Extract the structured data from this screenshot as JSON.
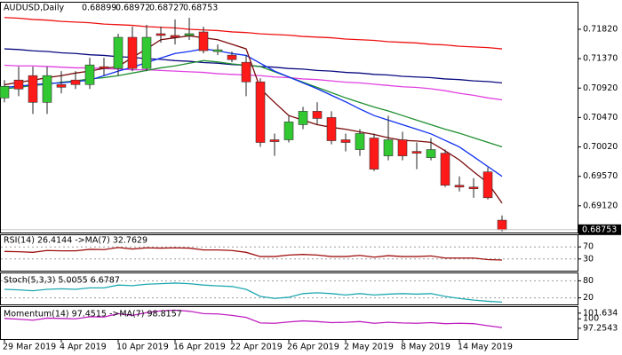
{
  "chart_data": [
    {
      "type": "candlestick",
      "title": "AUDUSD,Daily",
      "categories": [
        "29 Mar 2019",
        null,
        null,
        null,
        "4 Apr 2019",
        null,
        null,
        null,
        "10 Apr 2019",
        null,
        null,
        null,
        "16 Apr 2019",
        null,
        null,
        null,
        "22 Apr 2019",
        null,
        null,
        null,
        "26 Apr 2019",
        null,
        null,
        null,
        "2 May 2019",
        null,
        null,
        null,
        "8 May 2019",
        null,
        null,
        null,
        "14 May 2019",
        null,
        null,
        null
      ],
      "open": [
        0.7077,
        0.71043,
        0.71111,
        0.70702,
        0.70974,
        0.71043,
        0.70974,
        0.71247,
        0.7122,
        0.71697,
        0.7122,
        0.71752,
        0.71725,
        0.71725,
        0.71779,
        0.71479,
        0.71424,
        0.71315,
        0.71015,
        0.70129,
        0.70129,
        0.70361,
        0.70565,
        0.7047,
        0.70129,
        0.69979,
        0.70156,
        0.69883,
        0.70129,
        0.69951,
        0.69856,
        0.69924,
        0.69433,
        0.69406,
        0.69638,
        0.68899
      ],
      "high": [
        0.71043,
        0.71247,
        0.71247,
        0.71247,
        0.71179,
        0.71179,
        0.71384,
        0.71384,
        0.71752,
        0.71861,
        0.71888,
        0.71861,
        0.7197,
        0.71997,
        0.71861,
        0.71588,
        0.71479,
        0.71424,
        0.7107,
        0.70224,
        0.70497,
        0.70633,
        0.70702,
        0.70565,
        0.70224,
        0.70292,
        0.70224,
        0.70497,
        0.70251,
        0.70088,
        0.70156,
        0.69979,
        0.69569,
        0.69542,
        0.69706,
        0.68972
      ],
      "low": [
        0.70702,
        0.70797,
        0.70524,
        0.70524,
        0.70838,
        0.70906,
        0.70906,
        0.71111,
        0.71111,
        0.71179,
        0.71179,
        0.71615,
        0.71588,
        0.71656,
        0.71452,
        0.71424,
        0.71315,
        0.70797,
        0.7002,
        0.69883,
        0.70088,
        0.70292,
        0.70361,
        0.7006,
        0.69951,
        0.69883,
        0.69651,
        0.69815,
        0.69815,
        0.69679,
        0.69815,
        0.69406,
        0.69338,
        0.69242,
        0.69215,
        0.68727
      ],
      "close": [
        0.70947,
        0.70906,
        0.70702,
        0.71111,
        0.70933,
        0.70974,
        0.71274,
        0.7122,
        0.71697,
        0.7122,
        0.71697,
        0.71725,
        0.71697,
        0.71752,
        0.71493,
        0.71506,
        0.71356,
        0.71015,
        0.70088,
        0.70101,
        0.70402,
        0.70565,
        0.70456,
        0.70115,
        0.70088,
        0.70224,
        0.69679,
        0.70129,
        0.69883,
        0.69924,
        0.69979,
        0.69433,
        0.69406,
        0.69379,
        0.69242,
        0.68753
      ],
      "up_color": "#32c832",
      "down_color": "#ff1a1a",
      "ylim": [
        0.6871,
        0.722
      ],
      "yticks": [
        {
          "value": 0.7182,
          "label": "0.71820"
        },
        {
          "value": 0.7137,
          "label": "0.71370"
        },
        {
          "value": 0.7092,
          "label": "0.70920"
        },
        {
          "value": 0.7047,
          "label": "0.70470"
        },
        {
          "value": 0.7002,
          "label": "0.70020"
        },
        {
          "value": 0.6957,
          "label": "0.69570"
        },
        {
          "value": 0.6912,
          "label": "0.69120"
        }
      ],
      "series": [
        {
          "color": "#ee1111",
          "values": [
            0.72,
            0.7199,
            0.7197,
            0.7196,
            0.7194,
            0.7193,
            0.7192,
            0.719,
            0.7189,
            0.7188,
            0.7186,
            0.7185,
            0.7184,
            0.7182,
            0.7181,
            0.718,
            0.7178,
            0.7177,
            0.7175,
            0.7174,
            0.7173,
            0.7171,
            0.717,
            0.7169,
            0.7167,
            0.7166,
            0.7165,
            0.7163,
            0.7162,
            0.7161,
            0.7159,
            0.7158,
            0.7156,
            0.7155,
            0.7154,
            0.7152
          ]
        },
        {
          "color": "#0a0a80",
          "values": [
            0.7152,
            0.7151,
            0.7149,
            0.7148,
            0.7146,
            0.7145,
            0.7143,
            0.7142,
            0.714,
            0.7139,
            0.7137,
            0.7136,
            0.7134,
            0.7133,
            0.7131,
            0.713,
            0.7128,
            0.7127,
            0.7125,
            0.7124,
            0.7122,
            0.7121,
            0.7119,
            0.7118,
            0.7116,
            0.7115,
            0.7113,
            0.7112,
            0.711,
            0.7109,
            0.7108,
            0.7106,
            0.7105,
            0.7103,
            0.7102,
            0.71
          ]
        },
        {
          "color": "#e040e0",
          "values": [
            0.7127,
            0.7126,
            0.7126,
            0.7125,
            0.7124,
            0.7123,
            0.7123,
            0.7122,
            0.7121,
            0.712,
            0.712,
            0.7119,
            0.7118,
            0.7117,
            0.7116,
            0.7114,
            0.7113,
            0.7112,
            0.7111,
            0.7109,
            0.7108,
            0.7106,
            0.7105,
            0.7103,
            0.7101,
            0.71,
            0.7098,
            0.7096,
            0.7094,
            0.7093,
            0.7091,
            0.7088,
            0.7084,
            0.7081,
            0.7077,
            0.7074
          ]
        },
        {
          "color": "#1f8f2f",
          "values": [
            0.7091,
            0.7093,
            0.7096,
            0.7098,
            0.7101,
            0.7103,
            0.7106,
            0.7108,
            0.7111,
            0.7115,
            0.7119,
            0.7123,
            0.7126,
            0.713,
            0.7134,
            0.7132,
            0.7129,
            0.7127,
            0.7125,
            0.7117,
            0.7109,
            0.7101,
            0.7093,
            0.7085,
            0.7077,
            0.707,
            0.7063,
            0.7057,
            0.705,
            0.7043,
            0.7036,
            0.7029,
            0.7023,
            0.7016,
            0.7009,
            0.7002
          ]
        },
        {
          "color": "#1030f0",
          "values": [
            0.7093,
            0.7095,
            0.7097,
            0.7099,
            0.71,
            0.7102,
            0.7104,
            0.7111,
            0.7118,
            0.7124,
            0.7131,
            0.7138,
            0.7145,
            0.7148,
            0.7152,
            0.7149,
            0.7145,
            0.7142,
            0.713,
            0.7118,
            0.7109,
            0.71,
            0.7091,
            0.7081,
            0.7071,
            0.706,
            0.705,
            0.7043,
            0.7036,
            0.7029,
            0.7022,
            0.7012,
            0.7002,
            0.6987,
            0.6972,
            0.6957
          ]
        },
        {
          "color": "#7a0a0a",
          "values": [
            0.7097,
            0.7101,
            0.7104,
            0.7108,
            0.7111,
            0.7115,
            0.7118,
            0.7122,
            0.7125,
            0.7139,
            0.7152,
            0.7166,
            0.7169,
            0.7172,
            0.7169,
            0.7166,
            0.7159,
            0.7152,
            0.7091,
            0.707,
            0.705,
            0.7043,
            0.7036,
            0.7032,
            0.7029,
            0.7025,
            0.7021,
            0.7016,
            0.7012,
            0.7011,
            0.7009,
            0.6996,
            0.6982,
            0.6964,
            0.6947,
            0.6916
          ]
        }
      ]
    },
    {
      "type": "line",
      "title": "RSI(14) 26.4144 ->MA(7) 32.7629",
      "ylim": [
        0,
        100
      ],
      "yticks": [
        70,
        30
      ],
      "series": [
        {
          "color": "#a01010",
          "values": [
            55,
            54,
            52,
            58,
            57,
            57,
            62,
            61,
            68,
            63,
            67,
            66,
            67,
            66,
            60,
            60,
            58,
            52,
            38,
            38,
            43,
            45,
            43,
            38,
            38,
            42,
            36,
            41,
            38,
            38,
            40,
            33,
            33,
            33,
            28,
            26.41
          ]
        }
      ]
    },
    {
      "type": "line",
      "title": "Stoch(5,3,3) 5.0055 6.6787",
      "ylim": [
        0,
        100
      ],
      "yticks": [
        80,
        20
      ],
      "series": [
        {
          "color": "#20a8b0",
          "values": [
            50,
            48,
            45,
            50,
            52,
            50,
            55,
            55,
            65,
            63,
            68,
            70,
            72,
            70,
            65,
            62,
            60,
            50,
            25,
            18,
            22,
            35,
            38,
            35,
            30,
            35,
            30,
            33,
            35,
            33,
            35,
            25,
            18,
            12,
            8,
            5
          ]
        }
      ]
    },
    {
      "type": "line",
      "title": "Momentum(14) 97.4515 ->MA(7) 98.8157",
      "ylim": [
        94.4,
        103.4
      ],
      "yticks": [
        101.634,
        100,
        97.2543
      ],
      "series": [
        {
          "color": "#c020c0",
          "values": [
            100.1,
            99.9,
            99.6,
            100.2,
            100.1,
            100.0,
            100.6,
            100.5,
            101.5,
            101.0,
            101.8,
            102.3,
            102.5,
            102.2,
            101.5,
            101.4,
            101.0,
            100.4,
            98.8,
            98.7,
            99.1,
            99.4,
            99.2,
            98.9,
            99.0,
            99.2,
            98.7,
            99.0,
            98.8,
            98.7,
            98.9,
            98.6,
            98.7,
            98.6,
            98.0,
            97.45
          ]
        }
      ]
    }
  ]
}
